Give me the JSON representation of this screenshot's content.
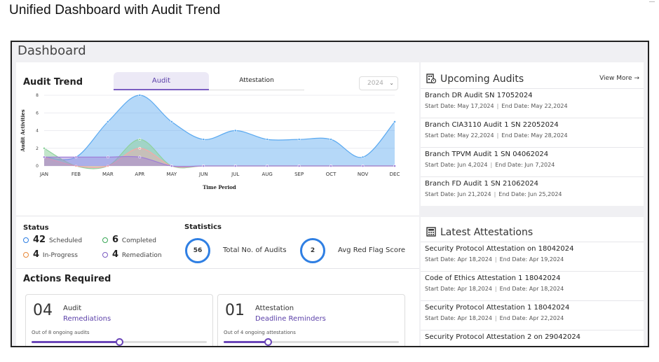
{
  "caption": "Unified Dashboard with Audit Trend",
  "dashboard": {
    "title": "Dashboard"
  },
  "audit_trend": {
    "title": "Audit Trend",
    "tabs": [
      "Audit",
      "Attestation"
    ],
    "active_tab": "Audit",
    "year": "2024",
    "colors": {
      "accent": "#7b5dc2",
      "series_blue": "#5aa9f0",
      "series_green": "#8fd19e",
      "series_red": "#f4a9a8",
      "series_purple": "#9f7fd8"
    }
  },
  "chart_data": {
    "type": "area",
    "xlabel": "Time Period",
    "ylabel": "Audit Activities",
    "categories": [
      "JAN",
      "FEB",
      "MAR",
      "APR",
      "MAY",
      "JUN",
      "JUL",
      "AUG",
      "SEP",
      "OCT",
      "NOV",
      "DEC"
    ],
    "y_ticks": [
      0,
      2,
      4,
      6,
      8
    ],
    "ylim": [
      0,
      8
    ],
    "grid": true,
    "series": [
      {
        "values": [
          1,
          1,
          5,
          8,
          5,
          3,
          4,
          3,
          3,
          3,
          1,
          5
        ],
        "color": "#5aa9f0"
      },
      {
        "values": [
          2,
          0,
          0,
          3,
          0,
          0,
          0,
          0,
          0,
          0,
          0,
          0
        ],
        "color": "#8fd19e"
      },
      {
        "values": [
          1,
          0,
          0,
          2,
          0,
          0,
          0,
          0,
          0,
          0,
          0,
          0
        ],
        "color": "#f4a9a8"
      },
      {
        "values": [
          1,
          1,
          1,
          1,
          0,
          0,
          0,
          0,
          0,
          0,
          0,
          0
        ],
        "color": "#9f7fd8"
      }
    ]
  },
  "status": {
    "title": "Status",
    "items": [
      {
        "count": "42",
        "label": "Scheduled",
        "color": "#2f7fe3"
      },
      {
        "count": "6",
        "label": "Completed",
        "color": "#3aa757"
      },
      {
        "count": "4",
        "label": "In-Progress",
        "color": "#e8893a"
      },
      {
        "count": "4",
        "label": "Remediation",
        "color": "#7b5dc2"
      }
    ]
  },
  "statistics": {
    "title": "Statistics",
    "total_audits": "56",
    "total_audits_label": "Total No. of Audits",
    "avg_red_flag": "2",
    "avg_red_flag_label": "Avg Red Flag Score"
  },
  "actions": {
    "title": "Actions Required",
    "cards": [
      {
        "count": "04",
        "kind": "Audit",
        "link": "Remediations",
        "sub": "Out of 8 ongoing audits",
        "progress": 0.5
      },
      {
        "count": "01",
        "kind": "Attestation",
        "link": "Deadline Reminders",
        "sub": "Out of 4 ongoing attestations",
        "progress": 0.25
      }
    ]
  },
  "upcoming": {
    "title": "Upcoming Audits",
    "view_more": "View More →",
    "items": [
      {
        "title": "Branch DR Audit SN 17052024",
        "start": "Start Date: May 17,2024",
        "end": "End Date: May 22,2024"
      },
      {
        "title": "Branch CIA3110 Audit 1 SN 22052024",
        "start": "Start Date: May 22,2024",
        "end": "End Date: May 28,2024"
      },
      {
        "title": "Branch TPVM Audit 1 SN 04062024",
        "start": "Start Date: Jun 4,2024",
        "end": "End Date: Jun 7,2024"
      },
      {
        "title": "Branch FD Audit 1 SN 21062024",
        "start": "Start Date: Jun 21,2024",
        "end": "End Date: Jun 25,2024"
      }
    ]
  },
  "attestations": {
    "title": "Latest Attestations",
    "items": [
      {
        "title": "Security Protocol Attestation on 18042024",
        "start": "Start Date: Apr 18,2024",
        "end": "End Date: Apr 19,2024"
      },
      {
        "title": "Code of Ethics Attestation 1 18042024",
        "start": "Start Date: Apr 18,2024",
        "end": "End Date: Apr 18,2024"
      },
      {
        "title": "Security Protocol Attestation 1 18042024",
        "start": "Start Date: Apr 18,2024",
        "end": "End Date: Apr 22,2024"
      },
      {
        "title": "Security Protocol Attestation 2 on 29042024",
        "start": "",
        "end": ""
      }
    ]
  }
}
